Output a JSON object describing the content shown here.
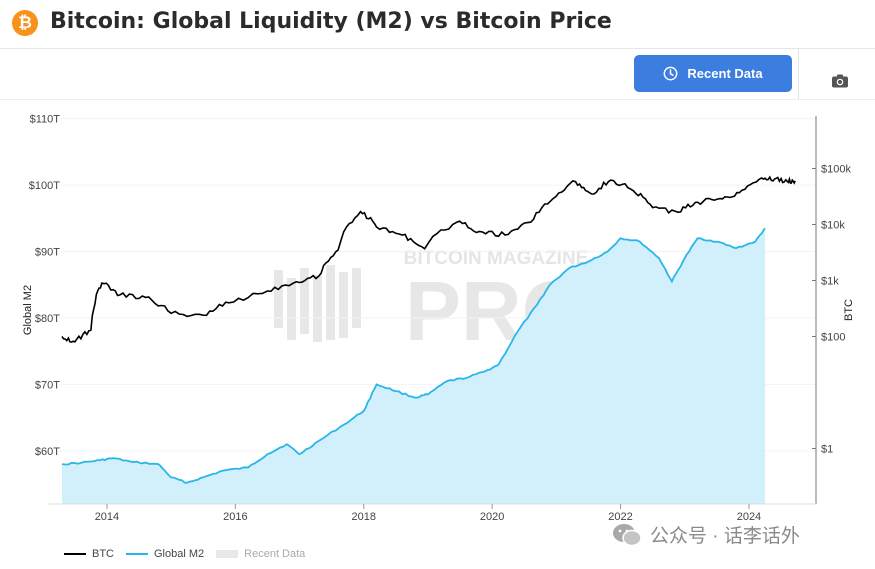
{
  "header": {
    "logo_glyph": "₿",
    "title": "Bitcoin: Global Liquidity (M2) vs Bitcoin Price"
  },
  "toolbar": {
    "recent_button_label": "Recent Data",
    "clock_icon": "clock-icon",
    "camera_icon": "camera-icon"
  },
  "watermark": {
    "top_text": "BITCOIN MAGAZINE",
    "main_text": "PRO"
  },
  "legend": {
    "btc": "BTC",
    "m2": "Global M2",
    "recent": "Recent Data"
  },
  "wechat": {
    "text": "公众号 · 话李话外"
  },
  "colors": {
    "btc": "#000000",
    "m2_line": "#29b6e8",
    "m2_fill": "#d2f0fb",
    "button": "#3c7de0",
    "logo": "#f7931a"
  },
  "chart_data": {
    "type": "line",
    "title": "Bitcoin: Global Liquidity (M2) vs Bitcoin Price",
    "x_axis": {
      "min": 2013.3,
      "max": 2024.95,
      "ticks": [
        "2014",
        "2016",
        "2018",
        "2020",
        "2022",
        "2024"
      ]
    },
    "y_left": {
      "label": "Global M2",
      "min": 52,
      "max": 111,
      "ticks": [
        "$60T",
        "$70T",
        "$80T",
        "$90T",
        "$100T",
        "$110T"
      ]
    },
    "y_right": {
      "label": "BTC",
      "scale": "log",
      "ticks": [
        "$1",
        "$100",
        "$1k",
        "$10k",
        "$100k"
      ]
    },
    "legend_placement": "bottom-left",
    "series": [
      {
        "name": "Global M2",
        "unit": "trillion USD",
        "axis": "left",
        "points": [
          [
            2013.3,
            58.0
          ],
          [
            2013.6,
            58.2
          ],
          [
            2013.9,
            58.6
          ],
          [
            2014.1,
            58.9
          ],
          [
            2014.4,
            58.3
          ],
          [
            2014.8,
            58.0
          ],
          [
            2015.0,
            56.0
          ],
          [
            2015.25,
            55.2
          ],
          [
            2015.5,
            56.0
          ],
          [
            2015.8,
            57.0
          ],
          [
            2016.2,
            57.5
          ],
          [
            2016.5,
            59.5
          ],
          [
            2016.8,
            61.0
          ],
          [
            2017.0,
            59.5
          ],
          [
            2017.3,
            61.5
          ],
          [
            2017.7,
            64.0
          ],
          [
            2018.0,
            66.0
          ],
          [
            2018.2,
            70.0
          ],
          [
            2018.5,
            69.0
          ],
          [
            2018.8,
            68.0
          ],
          [
            2019.0,
            68.5
          ],
          [
            2019.3,
            70.5
          ],
          [
            2019.6,
            71.0
          ],
          [
            2019.9,
            72.0
          ],
          [
            2020.1,
            73.0
          ],
          [
            2020.4,
            78.0
          ],
          [
            2020.7,
            82.0
          ],
          [
            2020.9,
            85.0
          ],
          [
            2021.2,
            87.5
          ],
          [
            2021.5,
            88.5
          ],
          [
            2021.8,
            90.0
          ],
          [
            2022.0,
            92.0
          ],
          [
            2022.3,
            91.5
          ],
          [
            2022.6,
            89.0
          ],
          [
            2022.8,
            85.5
          ],
          [
            2023.0,
            89.0
          ],
          [
            2023.2,
            92.0
          ],
          [
            2023.5,
            91.5
          ],
          [
            2023.8,
            90.5
          ],
          [
            2024.1,
            91.5
          ],
          [
            2024.25,
            93.5
          ]
        ]
      },
      {
        "name": "BTC",
        "unit": "USD",
        "axis": "right",
        "points": [
          [
            2013.3,
            100
          ],
          [
            2013.5,
            80
          ],
          [
            2013.75,
            130
          ],
          [
            2013.92,
            900
          ],
          [
            2014.2,
            550
          ],
          [
            2014.6,
            500
          ],
          [
            2015.0,
            260
          ],
          [
            2015.5,
            240
          ],
          [
            2015.9,
            400
          ],
          [
            2016.5,
            650
          ],
          [
            2016.95,
            950
          ],
          [
            2017.3,
            1200
          ],
          [
            2017.6,
            3500
          ],
          [
            2017.95,
            17000
          ],
          [
            2018.2,
            9000
          ],
          [
            2018.6,
            6500
          ],
          [
            2018.95,
            3700
          ],
          [
            2019.45,
            11000
          ],
          [
            2019.8,
            7500
          ],
          [
            2020.2,
            6500
          ],
          [
            2020.6,
            11000
          ],
          [
            2020.95,
            29000
          ],
          [
            2021.3,
            58000
          ],
          [
            2021.55,
            35000
          ],
          [
            2021.85,
            62000
          ],
          [
            2022.2,
            40000
          ],
          [
            2022.5,
            20000
          ],
          [
            2022.9,
            16500
          ],
          [
            2023.2,
            25000
          ],
          [
            2023.55,
            29000
          ],
          [
            2023.85,
            37000
          ],
          [
            2024.2,
            68000
          ],
          [
            2024.4,
            65000
          ],
          [
            2024.6,
            58000
          ],
          [
            2024.72,
            60000
          ]
        ]
      }
    ]
  }
}
